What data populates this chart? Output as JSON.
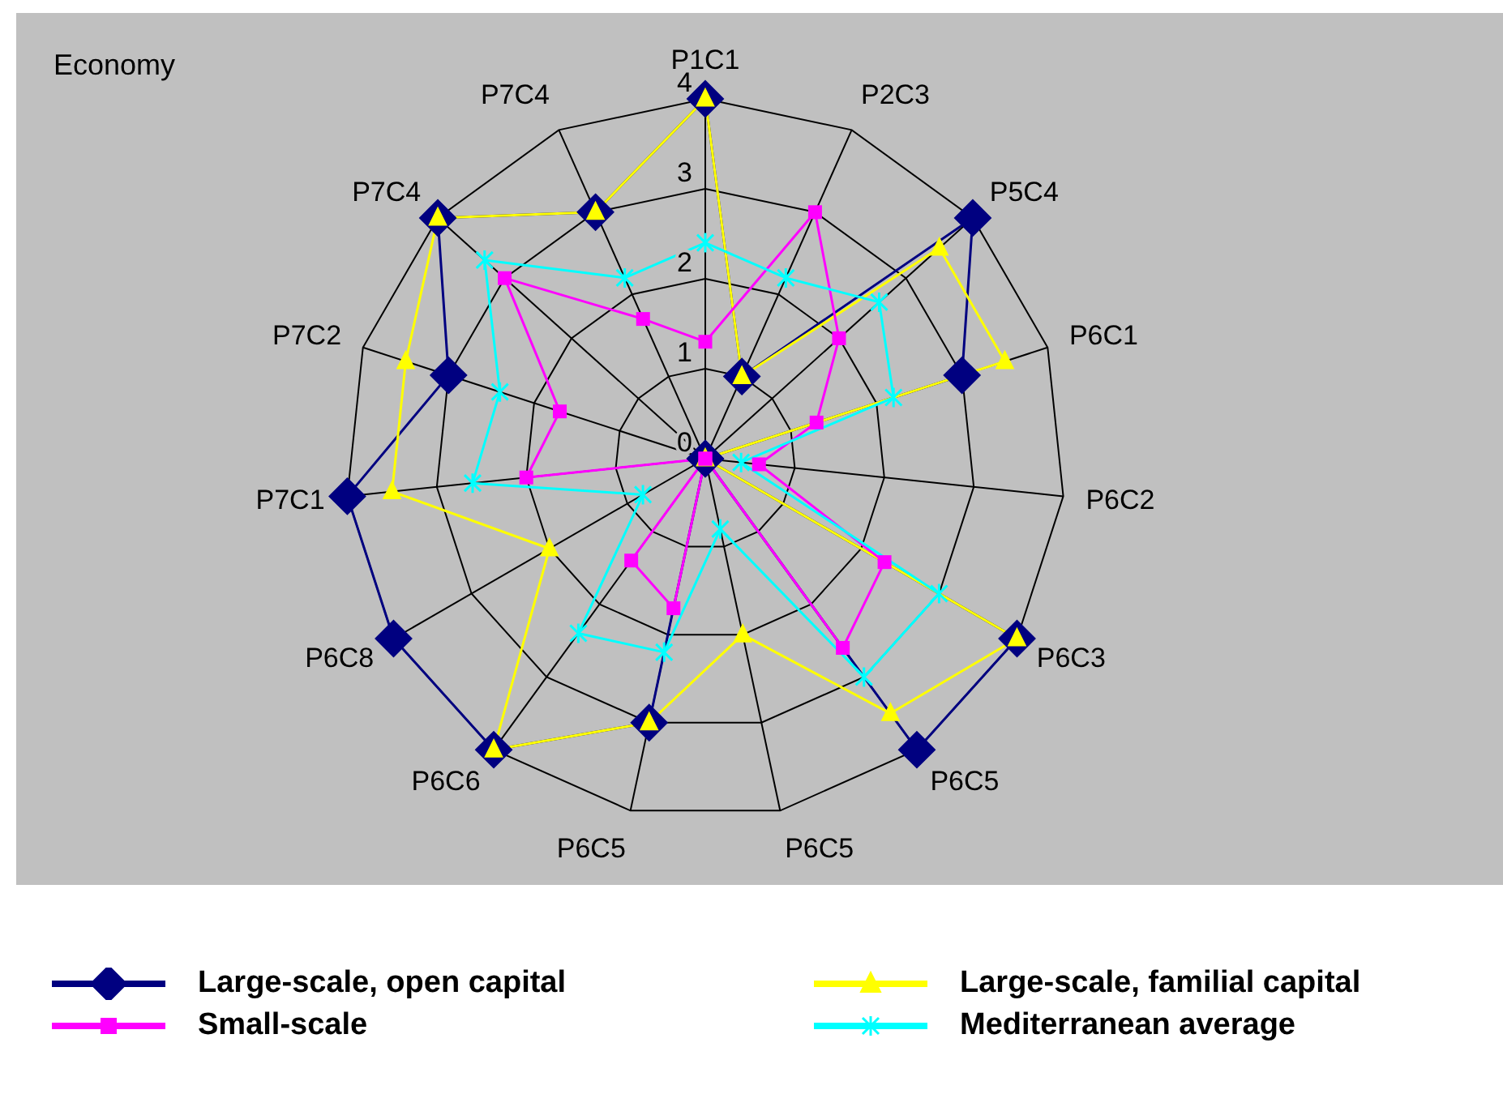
{
  "chart_data": {
    "type": "radar",
    "title": "Economy",
    "categories": [
      "P1C1",
      "P2C3",
      "P5C4",
      "P6C1",
      "P6C2",
      "P6C3",
      "P6C5",
      "P6C5",
      "P6C5",
      "P6C6",
      "P6C8",
      "P7C1",
      "P7C2",
      "P7C4",
      "P7C4"
    ],
    "series": [
      {
        "name": "Large-scale, open capital",
        "color": "#000080",
        "marker": "diamond",
        "values": [
          4,
          1,
          4,
          3,
          0,
          4,
          4,
          0,
          3,
          4,
          4,
          4,
          3,
          4,
          3
        ]
      },
      {
        "name": "Large-scale, familial capital",
        "color": "#ffff00",
        "marker": "triangle",
        "values": [
          4,
          1,
          3.5,
          3.5,
          0,
          4,
          3.5,
          2,
          3,
          4,
          2,
          3.5,
          3.5,
          4,
          3
        ]
      },
      {
        "name": "Small-scale",
        "color": "#ff00ff",
        "marker": "square",
        "values": [
          1.3,
          3,
          2,
          1.3,
          0.6,
          2.3,
          2.6,
          0,
          1.7,
          1.4,
          0,
          2,
          1.7,
          3,
          1.7
        ]
      },
      {
        "name": "Mediterranean average",
        "color": "#00ffff",
        "marker": "cross",
        "values": [
          2.4,
          2.2,
          2.6,
          2.2,
          0.4,
          3,
          3,
          0.8,
          2.2,
          2.4,
          0.8,
          2.6,
          2.4,
          3.3,
          2.2
        ]
      }
    ],
    "ylim": [
      0,
      4
    ],
    "yticks": [
      0,
      1,
      2,
      3,
      4
    ],
    "grid": true,
    "legend": "bottom"
  }
}
